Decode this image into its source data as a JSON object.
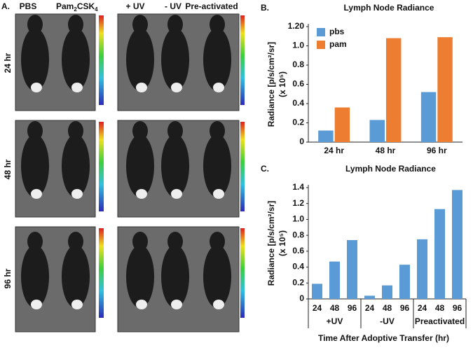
{
  "panel_a": {
    "label": "A.",
    "columns": {
      "pbs": "PBS",
      "pam": [
        "Pam",
        "2",
        "CSK",
        "4"
      ],
      "uv_plus": "+ UV",
      "uv_minus": "- UV",
      "preactivated": "Pre-activated"
    },
    "rows": [
      "24 hr",
      "48 hr",
      "96 hr"
    ]
  },
  "chart_data": [
    {
      "type": "bar",
      "panel_label": "B.",
      "title": "Lymph Node Radiance",
      "ylabel": "Radiance [p/s/cm²/sr]",
      "ylabel_unit": "(x 10⁵)",
      "categories": [
        "24 hr",
        "48 hr",
        "96 hr"
      ],
      "series": [
        {
          "name": "pbs",
          "color": "#5b9bd5",
          "values": [
            0.12,
            0.23,
            0.52
          ]
        },
        {
          "name": "pam",
          "color": "#ed7d31",
          "values": [
            0.36,
            1.08,
            1.09
          ]
        }
      ],
      "ylim": [
        0,
        1.2
      ],
      "yticks": [
        0,
        0.2,
        0.4,
        0.6,
        0.8,
        {
          "value": 1,
          "label": "1.0"
        },
        {
          "value": 1.2,
          "label": "1.20"
        }
      ],
      "legend": "upper-left",
      "grid": false
    },
    {
      "type": "grouped_bar",
      "panel_label": "C.",
      "title": "Lymph Node Radiance",
      "ylabel": "Radiance [p/s/cm²/sr]",
      "ylabel_unit": "(x 10⁵)",
      "xlabel": "Time After Adoptive Transfer (hr)",
      "color": "#5b9bd5",
      "groups": [
        {
          "label": "+UV",
          "categories": [
            "24",
            "48",
            "96"
          ],
          "values": [
            0.19,
            0.47,
            0.74
          ]
        },
        {
          "label": "-UV",
          "categories": [
            "24",
            "48",
            "96"
          ],
          "values": [
            0.04,
            0.17,
            0.43
          ]
        },
        {
          "label": "Preactivated",
          "categories": [
            "24",
            "48",
            "96"
          ],
          "values": [
            0.75,
            1.13,
            1.37
          ]
        }
      ],
      "ylim": [
        0,
        1.4
      ],
      "yticks": [
        0,
        0.2,
        0.4,
        0.6,
        0.8,
        {
          "value": 1,
          "label": "1.0"
        },
        1.2,
        1.4
      ],
      "grid": false
    }
  ]
}
